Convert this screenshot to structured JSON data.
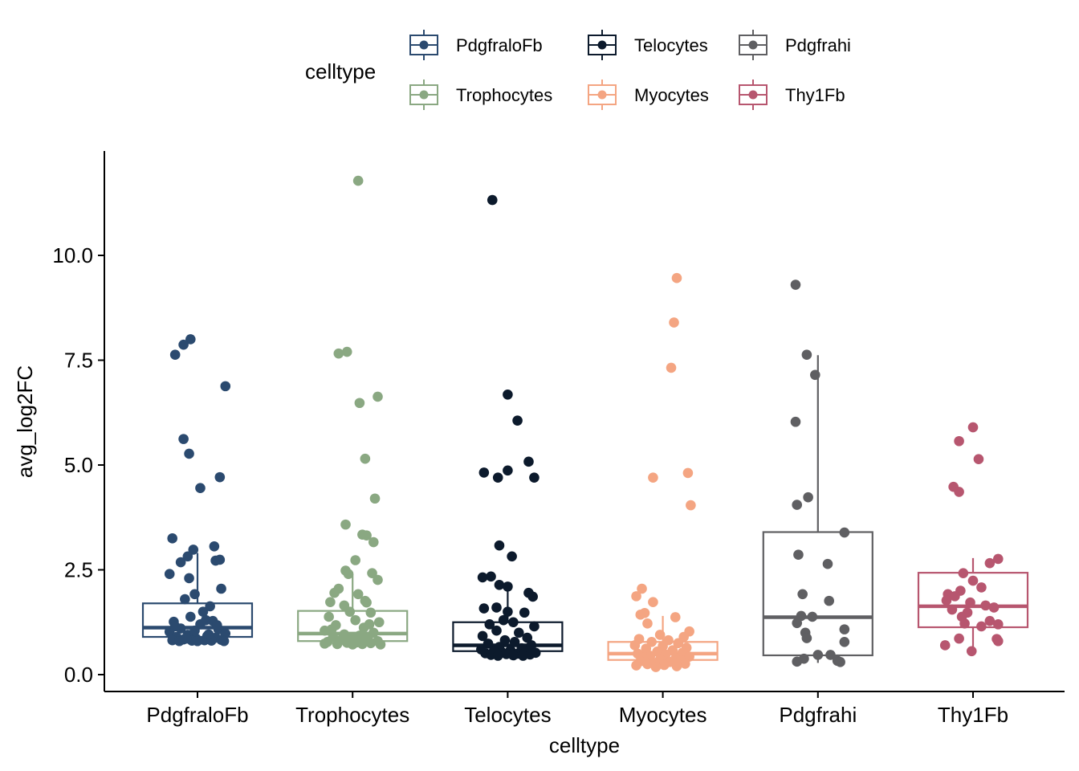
{
  "chart_data": {
    "type": "boxplot",
    "xlabel": "celltype",
    "ylabel": "avg_log2FC",
    "ylim": [
      -0.35,
      12.6
    ],
    "yticks": [
      "0.0",
      "2.5",
      "5.0",
      "7.5",
      "10.0"
    ],
    "ytick_values": [
      0,
      2.5,
      5,
      7.5,
      10
    ],
    "legend": {
      "title": "celltype",
      "placement": "top",
      "entries": [
        "PdgfraloFb",
        "Telocytes",
        "Pdgfrahi",
        "Trophocytes",
        "Myocytes",
        "Thy1Fb"
      ]
    },
    "categories": [
      "PdgfraloFb",
      "Trophocytes",
      "Telocytes",
      "Myocytes",
      "Pdgfrahi",
      "Thy1Fb"
    ],
    "series": [
      {
        "name": "PdgfraloFb",
        "color": "#2b4a6f",
        "box": {
          "whisker_low": 0.85,
          "q1": 0.9,
          "median": 1.12,
          "q3": 1.7,
          "whisker_high": 2.9
        },
        "points": [
          {
            "dx": -0.05,
            "y": 8.0
          },
          {
            "dx": -0.1,
            "y": 7.87
          },
          {
            "dx": -0.16,
            "y": 7.63
          },
          {
            "dx": 0.2,
            "y": 6.88
          },
          {
            "dx": -0.1,
            "y": 5.62
          },
          {
            "dx": -0.06,
            "y": 5.27
          },
          {
            "dx": 0.16,
            "y": 4.71
          },
          {
            "dx": 0.02,
            "y": 4.45
          },
          {
            "dx": -0.18,
            "y": 3.25
          },
          {
            "dx": 0.12,
            "y": 3.06
          },
          {
            "dx": -0.03,
            "y": 2.98
          },
          {
            "dx": -0.07,
            "y": 2.82
          },
          {
            "dx": -0.12,
            "y": 2.68
          },
          {
            "dx": 0.13,
            "y": 2.72
          },
          {
            "dx": 0.16,
            "y": 2.74
          },
          {
            "dx": -0.2,
            "y": 2.4
          },
          {
            "dx": -0.06,
            "y": 2.3
          },
          {
            "dx": 0.17,
            "y": 2.05
          },
          {
            "dx": -0.02,
            "y": 1.92
          },
          {
            "dx": -0.09,
            "y": 1.8
          },
          {
            "dx": 0.09,
            "y": 1.63
          },
          {
            "dx": 0.04,
            "y": 1.5
          },
          {
            "dx": -0.05,
            "y": 1.38
          },
          {
            "dx": 0.11,
            "y": 1.28
          },
          {
            "dx": -0.17,
            "y": 1.26
          },
          {
            "dx": 0.02,
            "y": 1.2
          },
          {
            "dx": -0.12,
            "y": 1.1
          },
          {
            "dx": 0.15,
            "y": 1.08
          },
          {
            "dx": -0.2,
            "y": 1.02
          },
          {
            "dx": 0.2,
            "y": 0.98
          },
          {
            "dx": -0.07,
            "y": 0.95
          },
          {
            "dx": 0.07,
            "y": 0.92
          },
          {
            "dx": -0.15,
            "y": 0.9
          },
          {
            "dx": 0.13,
            "y": 0.88
          },
          {
            "dx": -0.01,
            "y": 0.86
          },
          {
            "dx": -0.1,
            "y": 0.84
          },
          {
            "dx": 0.17,
            "y": 0.83
          },
          {
            "dx": -0.18,
            "y": 0.82
          },
          {
            "dx": 0.05,
            "y": 0.82
          },
          {
            "dx": -0.04,
            "y": 0.81
          },
          {
            "dx": 0.1,
            "y": 0.81
          },
          {
            "dx": -0.13,
            "y": 0.8
          },
          {
            "dx": 0.19,
            "y": 0.8
          },
          {
            "dx": 0.0,
            "y": 0.8
          },
          {
            "dx": -0.08,
            "y": 0.86
          },
          {
            "dx": 0.08,
            "y": 0.96
          },
          {
            "dx": -0.16,
            "y": 1.15
          },
          {
            "dx": 0.14,
            "y": 1.18
          },
          {
            "dx": -0.02,
            "y": 1.05
          },
          {
            "dx": 0.06,
            "y": 1.3
          }
        ]
      },
      {
        "name": "Trophocytes",
        "color": "#8aa882",
        "box": {
          "whisker_low": 0.72,
          "q1": 0.8,
          "median": 0.98,
          "q3": 1.52,
          "whisker_high": 2.4
        },
        "points": [
          {
            "dx": 0.04,
            "y": 11.78
          },
          {
            "dx": -0.04,
            "y": 7.7
          },
          {
            "dx": -0.1,
            "y": 7.66
          },
          {
            "dx": 0.18,
            "y": 6.63
          },
          {
            "dx": 0.05,
            "y": 6.48
          },
          {
            "dx": 0.09,
            "y": 5.15
          },
          {
            "dx": 0.16,
            "y": 4.2
          },
          {
            "dx": -0.05,
            "y": 3.58
          },
          {
            "dx": 0.07,
            "y": 3.34
          },
          {
            "dx": 0.1,
            "y": 3.32
          },
          {
            "dx": 0.15,
            "y": 3.16
          },
          {
            "dx": 0.02,
            "y": 2.73
          },
          {
            "dx": -0.05,
            "y": 2.48
          },
          {
            "dx": -0.03,
            "y": 2.4
          },
          {
            "dx": 0.14,
            "y": 2.42
          },
          {
            "dx": 0.18,
            "y": 2.26
          },
          {
            "dx": -0.1,
            "y": 2.05
          },
          {
            "dx": -0.13,
            "y": 1.95
          },
          {
            "dx": 0.04,
            "y": 1.92
          },
          {
            "dx": -0.16,
            "y": 1.73
          },
          {
            "dx": 0.09,
            "y": 1.76
          },
          {
            "dx": 0.1,
            "y": 1.72
          },
          {
            "dx": -0.06,
            "y": 1.65
          },
          {
            "dx": -0.02,
            "y": 1.5
          },
          {
            "dx": 0.13,
            "y": 1.48
          },
          {
            "dx": -0.17,
            "y": 1.38
          },
          {
            "dx": 0.02,
            "y": 1.3
          },
          {
            "dx": 0.19,
            "y": 1.25
          },
          {
            "dx": -0.12,
            "y": 1.18
          },
          {
            "dx": 0.08,
            "y": 1.12
          },
          {
            "dx": -0.2,
            "y": 1.05
          },
          {
            "dx": 0.15,
            "y": 1.0
          },
          {
            "dx": -0.06,
            "y": 0.96
          },
          {
            "dx": 0.05,
            "y": 0.93
          },
          {
            "dx": -0.14,
            "y": 0.9
          },
          {
            "dx": 0.11,
            "y": 0.87
          },
          {
            "dx": -0.01,
            "y": 0.85
          },
          {
            "dx": -0.09,
            "y": 0.82
          },
          {
            "dx": 0.18,
            "y": 0.8
          },
          {
            "dx": -0.18,
            "y": 0.78
          },
          {
            "dx": 0.03,
            "y": 0.77
          },
          {
            "dx": -0.04,
            "y": 0.76
          },
          {
            "dx": 0.13,
            "y": 0.75
          },
          {
            "dx": -0.2,
            "y": 0.74
          },
          {
            "dx": 0.07,
            "y": 0.73
          },
          {
            "dx": -0.11,
            "y": 0.73
          },
          {
            "dx": 0.2,
            "y": 0.72
          },
          {
            "dx": 0.0,
            "y": 0.72
          },
          {
            "dx": -0.15,
            "y": 1.08
          },
          {
            "dx": 0.12,
            "y": 1.2
          }
        ]
      },
      {
        "name": "Telocytes",
        "color": "#0c1a2c",
        "box": {
          "whisker_low": 0.5,
          "q1": 0.56,
          "median": 0.7,
          "q3": 1.25,
          "whisker_high": 2.1
        },
        "points": [
          {
            "dx": -0.11,
            "y": 11.32
          },
          {
            "dx": 0.0,
            "y": 6.68
          },
          {
            "dx": 0.07,
            "y": 6.06
          },
          {
            "dx": 0.15,
            "y": 5.08
          },
          {
            "dx": 0.0,
            "y": 4.87
          },
          {
            "dx": -0.17,
            "y": 4.82
          },
          {
            "dx": -0.07,
            "y": 4.7
          },
          {
            "dx": 0.19,
            "y": 4.7
          },
          {
            "dx": -0.06,
            "y": 3.08
          },
          {
            "dx": 0.03,
            "y": 2.82
          },
          {
            "dx": -0.18,
            "y": 2.32
          },
          {
            "dx": -0.12,
            "y": 2.34
          },
          {
            "dx": -0.06,
            "y": 2.14
          },
          {
            "dx": 0.0,
            "y": 2.1
          },
          {
            "dx": 0.15,
            "y": 1.95
          },
          {
            "dx": 0.18,
            "y": 1.86
          },
          {
            "dx": -0.17,
            "y": 1.58
          },
          {
            "dx": -0.08,
            "y": 1.6
          },
          {
            "dx": 0.0,
            "y": 1.5
          },
          {
            "dx": 0.12,
            "y": 1.48
          },
          {
            "dx": -0.03,
            "y": 1.3
          },
          {
            "dx": 0.04,
            "y": 1.25
          },
          {
            "dx": -0.13,
            "y": 1.2
          },
          {
            "dx": 0.19,
            "y": 1.15
          },
          {
            "dx": -0.08,
            "y": 1.05
          },
          {
            "dx": 0.08,
            "y": 1.0
          },
          {
            "dx": -0.18,
            "y": 0.92
          },
          {
            "dx": 0.14,
            "y": 0.88
          },
          {
            "dx": -0.02,
            "y": 0.82
          },
          {
            "dx": 0.05,
            "y": 0.78
          },
          {
            "dx": -0.14,
            "y": 0.74
          },
          {
            "dx": 0.17,
            "y": 0.7
          },
          {
            "dx": -0.06,
            "y": 0.66
          },
          {
            "dx": 0.1,
            "y": 0.63
          },
          {
            "dx": -0.19,
            "y": 0.6
          },
          {
            "dx": 0.02,
            "y": 0.58
          },
          {
            "dx": -0.1,
            "y": 0.56
          },
          {
            "dx": 0.13,
            "y": 0.55
          },
          {
            "dx": -0.04,
            "y": 0.53
          },
          {
            "dx": 0.2,
            "y": 0.52
          },
          {
            "dx": -0.16,
            "y": 0.51
          },
          {
            "dx": 0.07,
            "y": 0.5
          },
          {
            "dx": -0.01,
            "y": 0.49
          },
          {
            "dx": 0.16,
            "y": 0.48
          },
          {
            "dx": -0.12,
            "y": 0.47
          },
          {
            "dx": 0.04,
            "y": 0.46
          },
          {
            "dx": -0.07,
            "y": 0.45
          },
          {
            "dx": 0.11,
            "y": 0.45
          }
        ]
      },
      {
        "name": "Myocytes",
        "color": "#f4a582",
        "box": {
          "whisker_low": 0.2,
          "q1": 0.35,
          "median": 0.5,
          "q3": 0.78,
          "whisker_high": 1.4
        },
        "points": [
          {
            "dx": 0.1,
            "y": 9.46
          },
          {
            "dx": 0.08,
            "y": 8.4
          },
          {
            "dx": 0.06,
            "y": 7.32
          },
          {
            "dx": 0.18,
            "y": 4.81
          },
          {
            "dx": -0.07,
            "y": 4.7
          },
          {
            "dx": 0.2,
            "y": 4.04
          },
          {
            "dx": -0.15,
            "y": 2.05
          },
          {
            "dx": -0.19,
            "y": 1.87
          },
          {
            "dx": -0.07,
            "y": 1.73
          },
          {
            "dx": -0.16,
            "y": 1.43
          },
          {
            "dx": -0.13,
            "y": 1.47
          },
          {
            "dx": 0.09,
            "y": 1.37
          },
          {
            "dx": -0.11,
            "y": 1.22
          },
          {
            "dx": 0.19,
            "y": 1.03
          },
          {
            "dx": -0.02,
            "y": 0.95
          },
          {
            "dx": 0.15,
            "y": 0.9
          },
          {
            "dx": -0.17,
            "y": 0.85
          },
          {
            "dx": 0.04,
            "y": 0.82
          },
          {
            "dx": -0.08,
            "y": 0.78
          },
          {
            "dx": 0.11,
            "y": 0.75
          },
          {
            "dx": -0.2,
            "y": 0.7
          },
          {
            "dx": 0.0,
            "y": 0.68
          },
          {
            "dx": 0.17,
            "y": 0.64
          },
          {
            "dx": -0.12,
            "y": 0.62
          },
          {
            "dx": 0.07,
            "y": 0.58
          },
          {
            "dx": -0.04,
            "y": 0.55
          },
          {
            "dx": 0.14,
            "y": 0.52
          },
          {
            "dx": -0.18,
            "y": 0.5
          },
          {
            "dx": 0.02,
            "y": 0.48
          },
          {
            "dx": -0.09,
            "y": 0.45
          },
          {
            "dx": 0.19,
            "y": 0.43
          },
          {
            "dx": -0.14,
            "y": 0.4
          },
          {
            "dx": 0.09,
            "y": 0.38
          },
          {
            "dx": -0.02,
            "y": 0.36
          },
          {
            "dx": 0.13,
            "y": 0.34
          },
          {
            "dx": -0.16,
            "y": 0.32
          },
          {
            "dx": 0.05,
            "y": 0.3
          },
          {
            "dx": -0.06,
            "y": 0.28
          },
          {
            "dx": 0.16,
            "y": 0.26
          },
          {
            "dx": -0.11,
            "y": 0.25
          },
          {
            "dx": 0.01,
            "y": 0.23
          },
          {
            "dx": -0.19,
            "y": 0.22
          },
          {
            "dx": 0.1,
            "y": 0.2
          },
          {
            "dx": -0.05,
            "y": 0.18
          }
        ]
      },
      {
        "name": "Pdgfrahi",
        "color": "#5f5f62",
        "box": {
          "whisker_low": 0.28,
          "q1": 0.46,
          "median": 1.37,
          "q3": 3.4,
          "whisker_high": 7.62
        },
        "points": [
          {
            "dx": -0.16,
            "y": 9.3
          },
          {
            "dx": -0.08,
            "y": 7.63
          },
          {
            "dx": -0.02,
            "y": 7.15
          },
          {
            "dx": -0.16,
            "y": 6.03
          },
          {
            "dx": -0.07,
            "y": 4.23
          },
          {
            "dx": -0.15,
            "y": 4.05
          },
          {
            "dx": 0.19,
            "y": 3.39
          },
          {
            "dx": -0.14,
            "y": 2.86
          },
          {
            "dx": 0.07,
            "y": 2.64
          },
          {
            "dx": -0.11,
            "y": 1.92
          },
          {
            "dx": 0.08,
            "y": 1.76
          },
          {
            "dx": -0.12,
            "y": 1.4
          },
          {
            "dx": -0.04,
            "y": 1.38
          },
          {
            "dx": -0.15,
            "y": 1.23
          },
          {
            "dx": 0.19,
            "y": 1.08
          },
          {
            "dx": -0.09,
            "y": 1.0
          },
          {
            "dx": -0.08,
            "y": 0.87
          },
          {
            "dx": 0.19,
            "y": 0.78
          },
          {
            "dx": 0.0,
            "y": 0.47
          },
          {
            "dx": 0.09,
            "y": 0.47
          },
          {
            "dx": -0.1,
            "y": 0.38
          },
          {
            "dx": 0.14,
            "y": 0.33
          },
          {
            "dx": 0.16,
            "y": 0.3
          },
          {
            "dx": -0.15,
            "y": 0.31
          }
        ]
      },
      {
        "name": "Thy1Fb",
        "color": "#b7566f",
        "box": {
          "whisker_low": 0.55,
          "q1": 1.13,
          "median": 1.63,
          "q3": 2.43,
          "whisker_high": 2.78
        },
        "points": [
          {
            "dx": 0.0,
            "y": 5.9
          },
          {
            "dx": -0.1,
            "y": 5.57
          },
          {
            "dx": 0.04,
            "y": 5.14
          },
          {
            "dx": -0.14,
            "y": 4.48
          },
          {
            "dx": -0.1,
            "y": 4.36
          },
          {
            "dx": 0.18,
            "y": 2.76
          },
          {
            "dx": 0.12,
            "y": 2.66
          },
          {
            "dx": -0.07,
            "y": 2.42
          },
          {
            "dx": 0.0,
            "y": 2.24
          },
          {
            "dx": 0.06,
            "y": 2.08
          },
          {
            "dx": -0.09,
            "y": 2.0
          },
          {
            "dx": -0.18,
            "y": 1.92
          },
          {
            "dx": -0.13,
            "y": 1.87
          },
          {
            "dx": -0.19,
            "y": 1.77
          },
          {
            "dx": -0.02,
            "y": 1.72
          },
          {
            "dx": 0.09,
            "y": 1.65
          },
          {
            "dx": 0.15,
            "y": 1.6
          },
          {
            "dx": -0.15,
            "y": 1.55
          },
          {
            "dx": -0.04,
            "y": 1.48
          },
          {
            "dx": -0.08,
            "y": 1.38
          },
          {
            "dx": 0.12,
            "y": 1.28
          },
          {
            "dx": 0.18,
            "y": 1.2
          },
          {
            "dx": -0.06,
            "y": 1.22
          },
          {
            "dx": 0.06,
            "y": 1.15
          },
          {
            "dx": -0.1,
            "y": 0.86
          },
          {
            "dx": 0.17,
            "y": 0.85
          },
          {
            "dx": 0.18,
            "y": 0.8
          },
          {
            "dx": -0.2,
            "y": 0.7
          },
          {
            "dx": -0.01,
            "y": 0.56
          }
        ]
      }
    ]
  }
}
